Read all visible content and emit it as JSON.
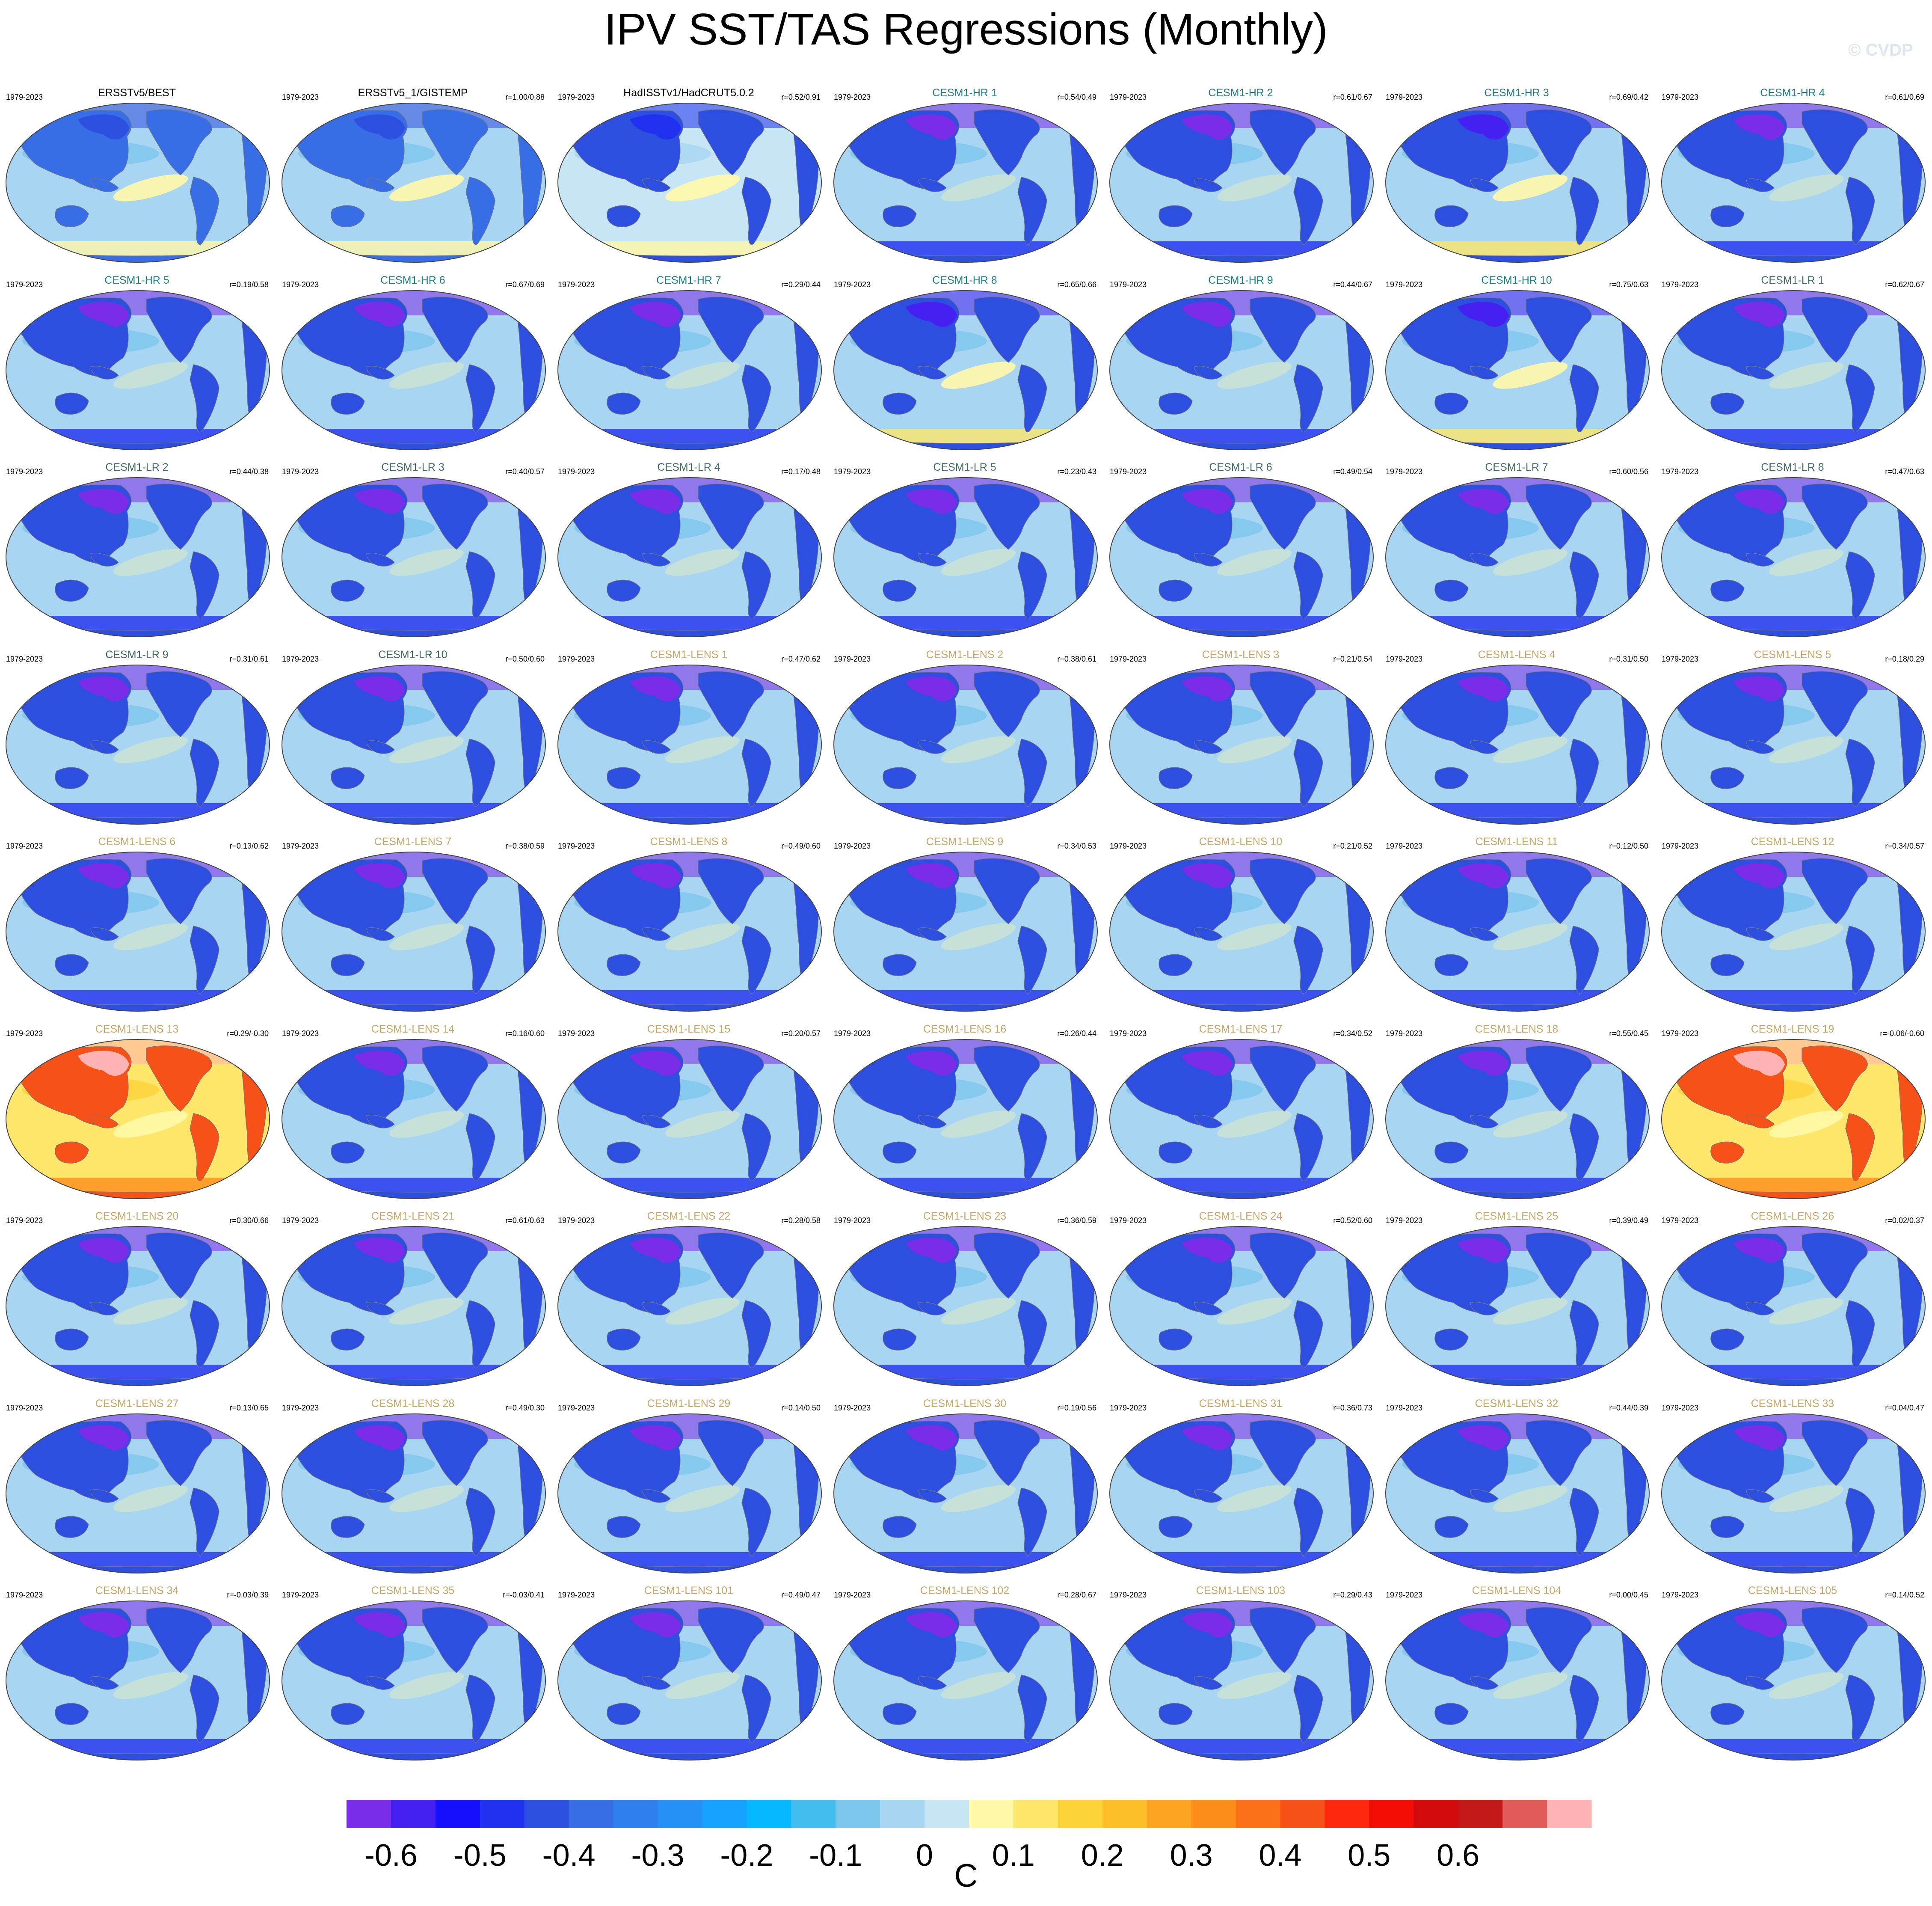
{
  "title": "IPV SST/TAS Regressions (Monthly)",
  "watermark": "© CVDP",
  "period": "1979-2023",
  "colors": {
    "obs": "#000000",
    "hr": "#1b7f86",
    "lr": "#3f6b64",
    "lens": "#c9a867"
  },
  "legend": {
    "units": "C",
    "tick_labels": [
      "-0.6",
      "-0.5",
      "-0.4",
      "-0.3",
      "-0.2",
      "-0.1",
      "0",
      "0.1",
      "0.2",
      "0.3",
      "0.4",
      "0.5",
      "0.6"
    ],
    "bins": [
      "#7b2ce8",
      "#4620f0",
      "#1410ff",
      "#1f30ef",
      "#2d4fdf",
      "#376ee6",
      "#2f7fef",
      "#2590f6",
      "#16a0ff",
      "#05b8ff",
      "#45bcf0",
      "#7cc6ec",
      "#a8d6f2",
      "#c6e6f6",
      "#fff8a8",
      "#fde66a",
      "#fdd33a",
      "#fdbf27",
      "#fca421",
      "#fc8d1a",
      "#fb7117",
      "#f65116",
      "#fd280d",
      "#f20c06",
      "#d20a0c",
      "#c31718",
      "#e15b5b",
      "#ffb3b3"
    ]
  },
  "panels": [
    {
      "title": "ERSSTv5/BEST",
      "corr": "",
      "group": "obs",
      "scheme": "obs"
    },
    {
      "title": "ERSSTv5_1/GISTEMP",
      "corr": "r=1.00/0.88",
      "group": "obs",
      "scheme": "obs"
    },
    {
      "title": "HadISSTv1/HadCRUT5.0.2",
      "corr": "r=0.52/0.91",
      "group": "obs",
      "scheme": "had"
    },
    {
      "title": "CESM1-HR 1",
      "corr": "r=0.54/0.49",
      "group": "hr",
      "scheme": "typ"
    },
    {
      "title": "CESM1-HR 2",
      "corr": "r=0.61/0.67",
      "group": "hr",
      "scheme": "typ"
    },
    {
      "title": "CESM1-HR 3",
      "corr": "r=0.69/0.42",
      "group": "hr",
      "scheme": "warm"
    },
    {
      "title": "CESM1-HR 4",
      "corr": "r=0.61/0.69",
      "group": "hr",
      "scheme": "typ"
    },
    {
      "title": "CESM1-HR 5",
      "corr": "r=0.19/0.58",
      "group": "hr",
      "scheme": "typ"
    },
    {
      "title": "CESM1-HR 6",
      "corr": "r=0.67/0.69",
      "group": "hr",
      "scheme": "typ"
    },
    {
      "title": "CESM1-HR 7",
      "corr": "r=0.29/0.44",
      "group": "hr",
      "scheme": "typ"
    },
    {
      "title": "CESM1-HR 8",
      "corr": "r=0.65/0.66",
      "group": "hr",
      "scheme": "warm"
    },
    {
      "title": "CESM1-HR 9",
      "corr": "r=0.44/0.67",
      "group": "hr",
      "scheme": "typ"
    },
    {
      "title": "CESM1-HR 10",
      "corr": "r=0.75/0.63",
      "group": "hr",
      "scheme": "warm"
    },
    {
      "title": "CESM1-LR 1",
      "corr": "r=0.62/0.67",
      "group": "lr",
      "scheme": "typ"
    },
    {
      "title": "CESM1-LR 2",
      "corr": "r=0.44/0.38",
      "group": "lr",
      "scheme": "typ"
    },
    {
      "title": "CESM1-LR 3",
      "corr": "r=0.40/0.57",
      "group": "lr",
      "scheme": "typ"
    },
    {
      "title": "CESM1-LR 4",
      "corr": "r=0.17/0.48",
      "group": "lr",
      "scheme": "typ"
    },
    {
      "title": "CESM1-LR 5",
      "corr": "r=0.23/0.43",
      "group": "lr",
      "scheme": "typ"
    },
    {
      "title": "CESM1-LR 6",
      "corr": "r=0.49/0.54",
      "group": "lr",
      "scheme": "typ"
    },
    {
      "title": "CESM1-LR 7",
      "corr": "r=0.60/0.56",
      "group": "lr",
      "scheme": "typ"
    },
    {
      "title": "CESM1-LR 8",
      "corr": "r=0.47/0.63",
      "group": "lr",
      "scheme": "typ"
    },
    {
      "title": "CESM1-LR 9",
      "corr": "r=0.31/0.61",
      "group": "lr",
      "scheme": "typ"
    },
    {
      "title": "CESM1-LR 10",
      "corr": "r=0.50/0.60",
      "group": "lr",
      "scheme": "typ"
    },
    {
      "title": "CESM1-LENS 1",
      "corr": "r=0.47/0.62",
      "group": "lens",
      "scheme": "typ"
    },
    {
      "title": "CESM1-LENS 2",
      "corr": "r=0.38/0.61",
      "group": "lens",
      "scheme": "typ"
    },
    {
      "title": "CESM1-LENS 3",
      "corr": "r=0.21/0.54",
      "group": "lens",
      "scheme": "typ"
    },
    {
      "title": "CESM1-LENS 4",
      "corr": "r=0.31/0.50",
      "group": "lens",
      "scheme": "typ"
    },
    {
      "title": "CESM1-LENS 5",
      "corr": "r=0.18/0.29",
      "group": "lens",
      "scheme": "typ"
    },
    {
      "title": "CESM1-LENS 6",
      "corr": "r=0.13/0.62",
      "group": "lens",
      "scheme": "typ"
    },
    {
      "title": "CESM1-LENS 7",
      "corr": "r=0.38/0.59",
      "group": "lens",
      "scheme": "typ"
    },
    {
      "title": "CESM1-LENS 8",
      "corr": "r=0.49/0.60",
      "group": "lens",
      "scheme": "typ"
    },
    {
      "title": "CESM1-LENS 9",
      "corr": "r=0.34/0.53",
      "group": "lens",
      "scheme": "typ"
    },
    {
      "title": "CESM1-LENS 10",
      "corr": "r=0.21/0.52",
      "group": "lens",
      "scheme": "typ"
    },
    {
      "title": "CESM1-LENS 11",
      "corr": "r=0.12/0.50",
      "group": "lens",
      "scheme": "typ"
    },
    {
      "title": "CESM1-LENS 12",
      "corr": "r=0.34/0.57",
      "group": "lens",
      "scheme": "typ"
    },
    {
      "title": "CESM1-LENS 13",
      "corr": "r=0.29/-0.30",
      "group": "lens",
      "scheme": "hot"
    },
    {
      "title": "CESM1-LENS 14",
      "corr": "r=0.16/0.60",
      "group": "lens",
      "scheme": "typ"
    },
    {
      "title": "CESM1-LENS 15",
      "corr": "r=0.20/0.57",
      "group": "lens",
      "scheme": "typ"
    },
    {
      "title": "CESM1-LENS 16",
      "corr": "r=0.26/0.44",
      "group": "lens",
      "scheme": "typ"
    },
    {
      "title": "CESM1-LENS 17",
      "corr": "r=0.34/0.52",
      "group": "lens",
      "scheme": "typ"
    },
    {
      "title": "CESM1-LENS 18",
      "corr": "r=0.55/0.45",
      "group": "lens",
      "scheme": "typ"
    },
    {
      "title": "CESM1-LENS 19",
      "corr": "r=-0.06/-0.60",
      "group": "lens",
      "scheme": "hot"
    },
    {
      "title": "CESM1-LENS 20",
      "corr": "r=0.30/0.66",
      "group": "lens",
      "scheme": "typ"
    },
    {
      "title": "CESM1-LENS 21",
      "corr": "r=0.61/0.63",
      "group": "lens",
      "scheme": "typ"
    },
    {
      "title": "CESM1-LENS 22",
      "corr": "r=0.28/0.58",
      "group": "lens",
      "scheme": "typ"
    },
    {
      "title": "CESM1-LENS 23",
      "corr": "r=0.36/0.59",
      "group": "lens",
      "scheme": "typ"
    },
    {
      "title": "CESM1-LENS 24",
      "corr": "r=0.52/0.60",
      "group": "lens",
      "scheme": "typ"
    },
    {
      "title": "CESM1-LENS 25",
      "corr": "r=0.39/0.49",
      "group": "lens",
      "scheme": "typ"
    },
    {
      "title": "CESM1-LENS 26",
      "corr": "r=0.02/0.37",
      "group": "lens",
      "scheme": "typ"
    },
    {
      "title": "CESM1-LENS 27",
      "corr": "r=0.13/0.65",
      "group": "lens",
      "scheme": "typ"
    },
    {
      "title": "CESM1-LENS 28",
      "corr": "r=0.49/0.30",
      "group": "lens",
      "scheme": "typ"
    },
    {
      "title": "CESM1-LENS 29",
      "corr": "r=0.14/0.50",
      "group": "lens",
      "scheme": "typ"
    },
    {
      "title": "CESM1-LENS 30",
      "corr": "r=0.19/0.56",
      "group": "lens",
      "scheme": "typ"
    },
    {
      "title": "CESM1-LENS 31",
      "corr": "r=0.36/0.73",
      "group": "lens",
      "scheme": "typ"
    },
    {
      "title": "CESM1-LENS 32",
      "corr": "r=0.44/0.39",
      "group": "lens",
      "scheme": "typ"
    },
    {
      "title": "CESM1-LENS 33",
      "corr": "r=0.04/0.47",
      "group": "lens",
      "scheme": "typ"
    },
    {
      "title": "CESM1-LENS 34",
      "corr": "r=-0.03/0.39",
      "group": "lens",
      "scheme": "typ"
    },
    {
      "title": "CESM1-LENS 35",
      "corr": "r=-0.03/0.41",
      "group": "lens",
      "scheme": "typ"
    },
    {
      "title": "CESM1-LENS 101",
      "corr": "r=0.49/0.47",
      "group": "lens",
      "scheme": "typ"
    },
    {
      "title": "CESM1-LENS 102",
      "corr": "r=0.28/0.67",
      "group": "lens",
      "scheme": "typ"
    },
    {
      "title": "CESM1-LENS 103",
      "corr": "r=0.29/0.43",
      "group": "lens",
      "scheme": "typ"
    },
    {
      "title": "CESM1-LENS 104",
      "corr": "r=0.00/0.45",
      "group": "lens",
      "scheme": "typ"
    },
    {
      "title": "CESM1-LENS 105",
      "corr": "r=0.14/0.52",
      "group": "lens",
      "scheme": "typ"
    }
  ]
}
